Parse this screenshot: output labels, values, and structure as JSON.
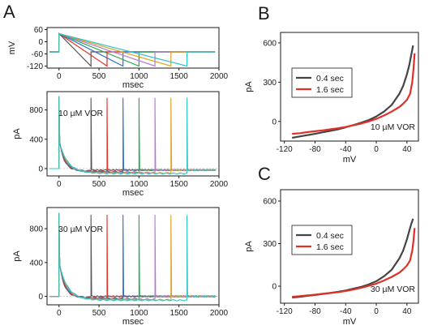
{
  "panels": {
    "A": {
      "letter": "A"
    },
    "B": {
      "letter": "B"
    },
    "C": {
      "letter": "C"
    }
  },
  "chart_data": [
    {
      "id": "A-protocol",
      "type": "line",
      "xlabel": "msec",
      "ylabel": "mV",
      "xlim": [
        -150,
        2000
      ],
      "ylim": [
        -130,
        70
      ],
      "xticks": [
        "0",
        "500",
        "1000",
        "1500",
        "2000"
      ],
      "yticks": [
        "60",
        "0",
        "-60",
        "-120"
      ],
      "ytick_values": [
        60,
        0,
        -60,
        -120
      ],
      "hold_mv": -50,
      "step_mv": 40,
      "ramp_end_mv": -120,
      "ramp_durations_ms": [
        400,
        600,
        800,
        1000,
        1200,
        1400,
        1600
      ],
      "colors": [
        "#555555",
        "#e0302a",
        "#2f6fc9",
        "#2aa84a",
        "#b37ad6",
        "#e0a020",
        "#2cc4c4"
      ]
    },
    {
      "id": "A-10",
      "type": "line",
      "xlabel": "msec",
      "ylabel": "pA",
      "xlim": [
        -150,
        2000
      ],
      "ylim": [
        -100,
        1050
      ],
      "xticks": [
        "0",
        "500",
        "1000",
        "1500",
        "2000"
      ],
      "yticks": [
        "0",
        "400",
        "800"
      ],
      "annotation": "10 µM VOR",
      "peak_pa": 980,
      "plateau_pa": -30,
      "ramp_durations_ms": [
        400,
        600,
        800,
        1000,
        1200,
        1400,
        1600
      ],
      "colors": [
        "#555555",
        "#e0302a",
        "#2f6fc9",
        "#2aa84a",
        "#b37ad6",
        "#e0a020",
        "#2cc4c4"
      ]
    },
    {
      "id": "A-30",
      "type": "line",
      "xlabel": "msec",
      "ylabel": "pA",
      "xlim": [
        -150,
        2000
      ],
      "ylim": [
        -100,
        1050
      ],
      "xticks": [
        "0",
        "500",
        "1000",
        "1500",
        "2000"
      ],
      "yticks": [
        "0",
        "400",
        "800"
      ],
      "annotation": "30 µM VOR",
      "peak_pa": 980,
      "plateau_pa": -10,
      "ramp_durations_ms": [
        400,
        600,
        800,
        1000,
        1200,
        1400,
        1600
      ],
      "colors": [
        "#555555",
        "#e0302a",
        "#2f6fc9",
        "#2aa84a",
        "#b37ad6",
        "#e0a020",
        "#2cc4c4"
      ]
    },
    {
      "id": "B",
      "type": "line",
      "xlabel": "mV",
      "ylabel": "pA",
      "xlim": [
        -125,
        55
      ],
      "ylim": [
        -150,
        680
      ],
      "xticks": [
        "-120",
        "-80",
        "-40",
        "0",
        "40"
      ],
      "yticks": [
        "0",
        "300",
        "600"
      ],
      "annotation": "10 µM VOR",
      "series": [
        {
          "name": "0.4 sec",
          "color": "#444444",
          "x": [
            -110,
            -100,
            -90,
            -80,
            -70,
            -60,
            -50,
            -40,
            -30,
            -20,
            -10,
            0,
            10,
            20,
            30,
            35,
            40,
            43,
            46,
            48
          ],
          "y": [
            -125,
            -115,
            -105,
            -95,
            -83,
            -72,
            -60,
            -45,
            -28,
            -10,
            10,
            38,
            75,
            125,
            210,
            270,
            360,
            430,
            520,
            580
          ]
        },
        {
          "name": "1.6 sec",
          "color": "#e0302a",
          "x": [
            -110,
            -100,
            -90,
            -80,
            -70,
            -60,
            -50,
            -40,
            -30,
            -20,
            -10,
            0,
            10,
            20,
            30,
            35,
            40,
            44,
            47,
            48.5,
            50
          ],
          "y": [
            -95,
            -90,
            -82,
            -75,
            -68,
            -60,
            -52,
            -42,
            -30,
            -17,
            0,
            20,
            45,
            75,
            110,
            135,
            165,
            210,
            300,
            400,
            520
          ]
        }
      ]
    },
    {
      "id": "C",
      "type": "line",
      "xlabel": "mV",
      "ylabel": "pA",
      "xlim": [
        -125,
        55
      ],
      "ylim": [
        -120,
        680
      ],
      "xticks": [
        "-120",
        "-80",
        "-40",
        "0",
        "40"
      ],
      "yticks": [
        "0",
        "300",
        "600"
      ],
      "annotation": "30 µM VOR",
      "series": [
        {
          "name": "0.4 sec",
          "color": "#444444",
          "x": [
            -110,
            -100,
            -90,
            -80,
            -70,
            -60,
            -50,
            -40,
            -30,
            -20,
            -10,
            0,
            10,
            20,
            30,
            35,
            40,
            43,
            46,
            48
          ],
          "y": [
            -80,
            -75,
            -68,
            -62,
            -55,
            -48,
            -40,
            -30,
            -18,
            -5,
            12,
            35,
            70,
            115,
            195,
            250,
            330,
            390,
            445,
            475
          ]
        },
        {
          "name": "1.6 sec",
          "color": "#e0302a",
          "x": [
            -110,
            -100,
            -90,
            -80,
            -70,
            -60,
            -50,
            -40,
            -30,
            -20,
            -10,
            0,
            10,
            20,
            30,
            35,
            40,
            44,
            47,
            48.5,
            50
          ],
          "y": [
            -75,
            -70,
            -65,
            -60,
            -54,
            -48,
            -42,
            -34,
            -24,
            -12,
            2,
            18,
            40,
            65,
            95,
            118,
            145,
            180,
            250,
            320,
            410
          ]
        }
      ]
    }
  ]
}
